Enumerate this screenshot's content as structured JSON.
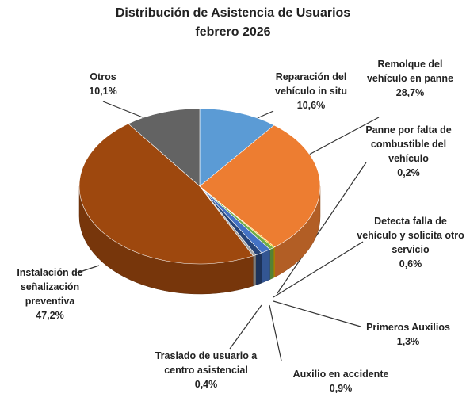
{
  "chart_data": {
    "type": "pie3d",
    "title": "Distribución de Asistencia de Usuarios",
    "subtitle": "febrero 2026",
    "categories": [
      "Reparación del vehículo in situ",
      "Remolque del vehículo en panne",
      "Panne por falta de combustible del vehículo",
      "Detecta falla de vehículo y solicita otro servicio",
      "Primeros Auxilios",
      "Auxilio en accidente",
      "Traslado de usuario a centro asistencial",
      "Instalación de señalización preventiva",
      "Otros"
    ],
    "values": [
      10.6,
      28.7,
      0.2,
      0.6,
      1.3,
      0.9,
      0.4,
      47.2,
      10.1
    ],
    "value_labels": [
      "10,6%",
      "28,7%",
      "0,2%",
      "0,6%",
      "1,3%",
      "0,9%",
      "0,4%",
      "47,2%",
      "10,1%"
    ],
    "colors": [
      "#5b9bd5",
      "#ed7d31",
      "#ffc000",
      "#70ad47",
      "#4472c4",
      "#264478",
      "#a5a5a5",
      "#9e480e",
      "#636363"
    ]
  }
}
